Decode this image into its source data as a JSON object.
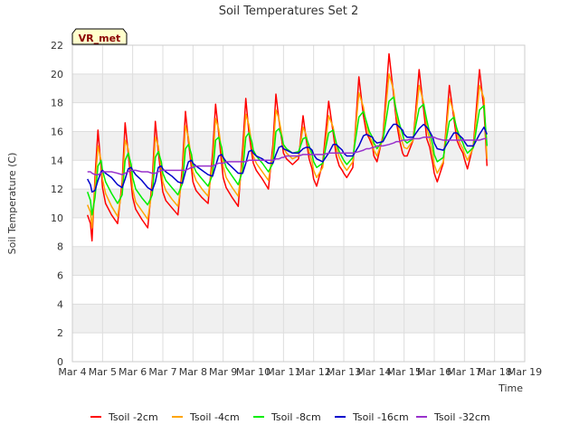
{
  "chart_data": {
    "type": "line",
    "title": "Soil Temperatures Set 2",
    "xlabel": "Time",
    "ylabel": "Soil Temperature (C)",
    "badge": "VR_met",
    "ylim": [
      0,
      22
    ],
    "yticks": [
      0,
      2,
      4,
      6,
      8,
      10,
      12,
      14,
      16,
      18,
      20,
      22
    ],
    "xlim_days": [
      4,
      19
    ],
    "xtick_labels": [
      "Mar 4",
      "Mar 5",
      "Mar 6",
      "Mar 7",
      "Mar 8",
      "Mar 9",
      "Mar 10",
      "Mar 11",
      "Mar 12",
      "Mar 13",
      "Mar 14",
      "Mar 15",
      "Mar 16",
      "Mar 17",
      "Mar 18",
      "Mar 19"
    ],
    "grid": true,
    "legend_position": "bottom",
    "x_days": [
      4.5,
      4.6,
      4.65,
      4.75,
      4.85,
      4.95,
      5.0,
      5.1,
      5.3,
      5.5,
      5.65,
      5.75,
      5.85,
      5.95,
      6.0,
      6.1,
      6.3,
      6.5,
      6.65,
      6.75,
      6.85,
      6.95,
      7.0,
      7.1,
      7.3,
      7.5,
      7.65,
      7.75,
      7.85,
      7.95,
      8.0,
      8.1,
      8.3,
      8.5,
      8.65,
      8.75,
      8.85,
      8.95,
      9.0,
      9.1,
      9.3,
      9.5,
      9.65,
      9.75,
      9.85,
      9.95,
      10.0,
      10.1,
      10.3,
      10.5,
      10.65,
      10.75,
      10.85,
      10.95,
      11.0,
      11.1,
      11.3,
      11.5,
      11.65,
      11.75,
      11.85,
      11.95,
      12.0,
      12.1,
      12.3,
      12.5,
      12.65,
      12.75,
      12.85,
      12.95,
      13.0,
      13.1,
      13.3,
      13.5,
      13.65,
      13.75,
      13.85,
      13.95,
      14.0,
      14.1,
      14.3,
      14.5,
      14.65,
      14.75,
      14.85,
      14.95,
      15.0,
      15.1,
      15.3,
      15.5,
      15.65,
      15.75,
      15.85,
      15.95,
      16.0,
      16.1,
      16.3,
      16.5,
      16.65,
      16.75,
      16.85,
      16.95,
      17.0,
      17.1,
      17.3,
      17.5,
      17.65,
      17.75,
      17.85,
      17.95,
      18.0,
      18.1,
      18.3,
      18.5
    ],
    "series": [
      {
        "name": "Tsoil -2cm",
        "color": "#ff0000",
        "values": [
          10.2,
          9.6,
          8.4,
          12.8,
          16.1,
          13.5,
          12.1,
          11.0,
          10.2,
          9.6,
          12.5,
          16.6,
          14.5,
          12.4,
          11.4,
          10.6,
          9.9,
          9.3,
          12.6,
          16.7,
          14.6,
          12.7,
          11.8,
          11.2,
          10.7,
          10.2,
          13.6,
          17.4,
          15.3,
          13.4,
          12.5,
          11.9,
          11.4,
          11.0,
          14.5,
          17.9,
          15.9,
          13.8,
          12.8,
          12.1,
          11.4,
          10.8,
          14.9,
          18.3,
          16.0,
          14.5,
          13.8,
          13.3,
          12.7,
          12.0,
          15.1,
          18.6,
          16.8,
          15.3,
          14.5,
          14.1,
          13.7,
          14.1,
          17.1,
          15.5,
          14.1,
          13.4,
          12.7,
          12.2,
          13.8,
          18.1,
          15.9,
          14.3,
          13.6,
          13.3,
          13.1,
          12.8,
          13.5,
          19.8,
          17.1,
          15.9,
          15.5,
          15.0,
          14.3,
          13.9,
          15.7,
          21.4,
          18.6,
          16.6,
          15.4,
          14.5,
          14.3,
          14.3,
          15.4,
          20.3,
          17.5,
          15.5,
          14.9,
          13.8,
          13.1,
          12.5,
          13.8,
          19.2,
          16.9,
          15.4,
          14.9,
          14.5,
          14.1,
          13.4,
          15.1,
          20.3,
          17.5,
          13.6
        ]
      },
      {
        "name": "Tsoil -4cm",
        "color": "#ffa500",
        "values": [
          10.9,
          10.4,
          9.3,
          12.2,
          15.0,
          14.0,
          12.7,
          11.7,
          10.8,
          10.1,
          12.0,
          15.4,
          14.8,
          13.2,
          12.0,
          11.1,
          10.5,
          9.9,
          12.0,
          15.6,
          15.0,
          13.4,
          12.5,
          11.9,
          11.3,
          10.8,
          12.9,
          16.4,
          15.6,
          14.0,
          13.2,
          12.6,
          12.0,
          11.5,
          13.7,
          16.9,
          16.2,
          14.6,
          13.6,
          12.8,
          12.1,
          11.5,
          14.1,
          17.2,
          16.5,
          15.1,
          14.3,
          13.8,
          13.2,
          12.6,
          14.5,
          17.5,
          16.9,
          15.7,
          14.9,
          14.5,
          14.1,
          14.3,
          16.3,
          15.8,
          14.6,
          13.9,
          13.3,
          12.8,
          13.5,
          17.1,
          16.3,
          14.9,
          14.2,
          13.8,
          13.6,
          13.3,
          13.9,
          18.7,
          17.7,
          16.4,
          15.7,
          15.2,
          14.7,
          14.3,
          15.5,
          20.0,
          18.9,
          17.1,
          15.9,
          15.2,
          14.9,
          14.8,
          15.4,
          19.2,
          18.0,
          16.3,
          15.4,
          14.5,
          13.7,
          13.1,
          13.9,
          18.3,
          17.3,
          15.9,
          15.2,
          14.8,
          14.5,
          14.0,
          14.9,
          19.2,
          18.3,
          14.1
        ]
      },
      {
        "name": "Tsoil -8cm",
        "color": "#00ee00",
        "values": [
          11.8,
          11.2,
          10.2,
          11.4,
          13.6,
          14.0,
          13.3,
          12.5,
          11.7,
          11.0,
          11.6,
          14.0,
          14.5,
          13.7,
          12.8,
          12.0,
          11.4,
          10.9,
          11.6,
          14.2,
          14.6,
          13.9,
          13.1,
          12.6,
          12.1,
          11.6,
          12.4,
          14.8,
          15.1,
          14.4,
          13.7,
          13.2,
          12.7,
          12.2,
          13.0,
          15.4,
          15.6,
          14.9,
          14.2,
          13.5,
          12.9,
          12.3,
          13.3,
          15.6,
          15.9,
          15.3,
          14.7,
          14.3,
          13.8,
          13.2,
          13.8,
          16.0,
          16.2,
          15.6,
          15.1,
          14.8,
          14.5,
          14.6,
          15.5,
          15.6,
          15.0,
          14.4,
          13.9,
          13.5,
          13.8,
          15.9,
          16.1,
          15.2,
          14.6,
          14.2,
          14.0,
          13.7,
          14.2,
          17.0,
          17.4,
          16.7,
          16.0,
          15.6,
          15.2,
          14.8,
          15.4,
          18.1,
          18.4,
          17.4,
          16.5,
          15.8,
          15.4,
          15.2,
          15.5,
          17.6,
          17.9,
          16.8,
          15.9,
          15.1,
          14.4,
          13.9,
          14.2,
          16.7,
          17.0,
          16.2,
          15.6,
          15.2,
          14.9,
          14.5,
          14.9,
          17.5,
          17.8,
          15.0
        ]
      },
      {
        "name": "Tsoil -16cm",
        "color": "#0000cc",
        "values": [
          12.7,
          12.3,
          11.8,
          11.9,
          12.6,
          13.2,
          13.3,
          13.1,
          12.8,
          12.3,
          12.1,
          12.7,
          13.4,
          13.5,
          13.3,
          13.0,
          12.6,
          12.1,
          11.9,
          12.5,
          13.5,
          13.6,
          13.4,
          13.2,
          12.9,
          12.5,
          12.4,
          13.2,
          13.9,
          14.0,
          13.8,
          13.6,
          13.3,
          13.0,
          12.9,
          13.6,
          14.3,
          14.4,
          14.2,
          13.9,
          13.5,
          13.1,
          13.1,
          13.8,
          14.6,
          14.7,
          14.5,
          14.3,
          14.1,
          13.8,
          13.8,
          14.4,
          14.9,
          15.0,
          14.8,
          14.7,
          14.5,
          14.5,
          14.8,
          14.9,
          14.9,
          14.7,
          14.4,
          14.1,
          13.9,
          14.5,
          15.1,
          15.1,
          14.9,
          14.7,
          14.5,
          14.3,
          14.3,
          15.0,
          15.7,
          15.8,
          15.7,
          15.6,
          15.4,
          15.2,
          15.3,
          16.1,
          16.5,
          16.5,
          16.3,
          16.1,
          15.8,
          15.6,
          15.6,
          16.2,
          16.5,
          16.3,
          16.0,
          15.6,
          15.2,
          14.8,
          14.7,
          15.4,
          15.9,
          15.9,
          15.7,
          15.5,
          15.3,
          15.0,
          15.0,
          15.8,
          16.3,
          15.8
        ]
      },
      {
        "name": "Tsoil -32cm",
        "color": "#9932cc",
        "values": [
          13.2,
          13.2,
          13.1,
          13.0,
          13.0,
          13.1,
          13.2,
          13.2,
          13.2,
          13.1,
          13.0,
          13.1,
          13.2,
          13.3,
          13.3,
          13.3,
          13.2,
          13.2,
          13.1,
          13.1,
          13.2,
          13.3,
          13.3,
          13.3,
          13.3,
          13.3,
          13.3,
          13.3,
          13.4,
          13.5,
          13.5,
          13.6,
          13.6,
          13.6,
          13.6,
          13.7,
          13.8,
          13.8,
          13.8,
          13.9,
          13.9,
          13.9,
          13.9,
          13.9,
          14.0,
          14.0,
          14.0,
          14.0,
          14.0,
          14.0,
          14.0,
          14.1,
          14.1,
          14.2,
          14.2,
          14.3,
          14.3,
          14.3,
          14.4,
          14.4,
          14.4,
          14.4,
          14.4,
          14.4,
          14.4,
          14.5,
          14.5,
          14.5,
          14.5,
          14.5,
          14.5,
          14.5,
          14.5,
          14.6,
          14.7,
          14.8,
          14.8,
          14.9,
          14.9,
          15.0,
          15.0,
          15.1,
          15.2,
          15.3,
          15.3,
          15.4,
          15.4,
          15.4,
          15.5,
          15.5,
          15.6,
          15.6,
          15.6,
          15.6,
          15.6,
          15.5,
          15.4,
          15.4,
          15.4,
          15.4,
          15.4,
          15.4,
          15.4,
          15.4,
          15.4,
          15.4,
          15.5,
          15.5
        ]
      }
    ]
  }
}
